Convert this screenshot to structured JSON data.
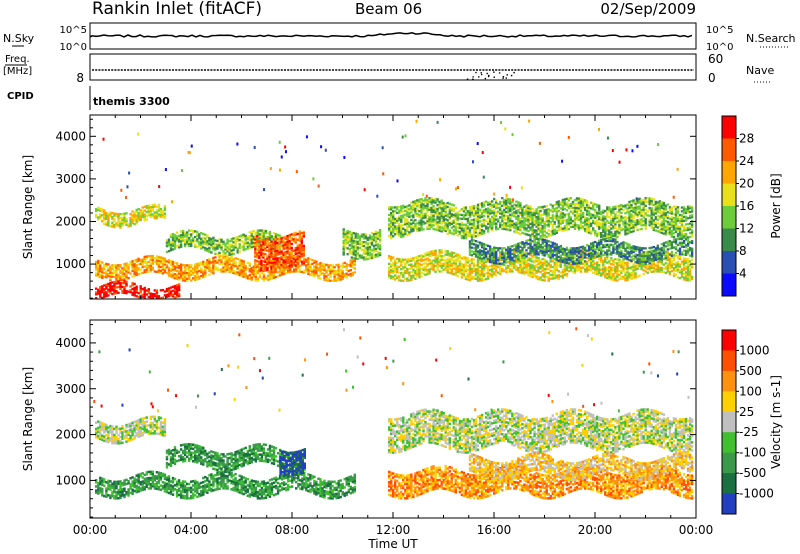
{
  "header": {
    "title": "Rankin Inlet (fitACF)",
    "beam": "Beam 06",
    "date": "02/Sep/2009"
  },
  "info_panels": {
    "nsky_label": "N.Sky",
    "nsky_ticks": [
      "10^5",
      "10^0"
    ],
    "nsearch_label": "N.Search",
    "nsearch_ticks": [
      "10^5",
      "10^0"
    ],
    "freq_label_1": "Freq.",
    "freq_label_2": "[MHz]",
    "freq_tick": "8",
    "nave_label": "Nave",
    "nave_ticks": [
      "60",
      "0"
    ],
    "cpid_label": "CPID",
    "cpid_value": "themis 3300"
  },
  "chart_data": [
    {
      "type": "heatmap",
      "name": "power",
      "xlabel": "",
      "ylabel": "Slant Range [km]",
      "xlim": [
        0,
        24
      ],
      "ylim": [
        180,
        4500
      ],
      "y_ticks": [
        1000,
        2000,
        3000,
        4000
      ],
      "colorbar_label": "Power [dB]",
      "colorbar_ticks": [
        "4",
        "8",
        "12",
        "16",
        "20",
        "24",
        "28"
      ],
      "colorbar_colors": [
        "#0a0aff",
        "#2a4fb4",
        "#3a8a4a",
        "#6ccc3a",
        "#e8e018",
        "#ffa500",
        "#ff5a00",
        "#ff0000"
      ],
      "echo_bands": [
        {
          "t": [
            0.2,
            3.0
          ],
          "r": [
            1950,
            2300
          ],
          "level": 4
        },
        {
          "t": [
            0.2,
            10.5
          ],
          "r": [
            700,
            1100
          ],
          "level": 5
        },
        {
          "t": [
            0.2,
            3.5
          ],
          "r": [
            200,
            500
          ],
          "level": 7
        },
        {
          "t": [
            3.0,
            7.5
          ],
          "r": [
            1300,
            1700
          ],
          "level": 3
        },
        {
          "t": [
            6.5,
            8.5
          ],
          "r": [
            900,
            1700
          ],
          "level": 6
        },
        {
          "t": [
            10.0,
            11.5
          ],
          "r": [
            1200,
            1800
          ],
          "level": 3
        },
        {
          "t": [
            11.8,
            23.8
          ],
          "r": [
            1700,
            2450
          ],
          "level": 3
        },
        {
          "t": [
            11.8,
            23.8
          ],
          "r": [
            700,
            1200
          ],
          "level": 4
        },
        {
          "t": [
            15.0,
            23.8
          ],
          "r": [
            1100,
            1500
          ],
          "level": 2
        }
      ]
    },
    {
      "type": "heatmap",
      "name": "velocity",
      "xlabel": "Time UT",
      "ylabel": "Slant Range [km]",
      "xlim": [
        0,
        24
      ],
      "ylim": [
        180,
        4500
      ],
      "y_ticks": [
        1000,
        2000,
        3000,
        4000
      ],
      "x_ticks": [
        "00:00",
        "04:00",
        "08:00",
        "12:00",
        "16:00",
        "20:00",
        "00:00"
      ],
      "colorbar_label": "Velocity [m s-1]",
      "colorbar_ticks": [
        "1000",
        "500",
        "100",
        "25",
        "-25",
        "-100",
        "-500",
        "-1000"
      ],
      "colorbar_colors": [
        "#2040c0",
        "#1a7040",
        "#3a9a4a",
        "#40c030",
        "#c0c0c0",
        "#ffd000",
        "#ff9010",
        "#ff5000",
        "#ff0000"
      ],
      "echo_bands": [
        {
          "t": [
            0.2,
            3.0
          ],
          "r": [
            1900,
            2300
          ],
          "level": 4
        },
        {
          "t": [
            0.2,
            10.5
          ],
          "r": [
            700,
            1100
          ],
          "level": 2
        },
        {
          "t": [
            3.0,
            8.5
          ],
          "r": [
            1300,
            1700
          ],
          "level": 2
        },
        {
          "t": [
            7.5,
            8.5
          ],
          "r": [
            1200,
            1700
          ],
          "level": 0
        },
        {
          "t": [
            11.8,
            23.8
          ],
          "r": [
            1700,
            2450
          ],
          "level": 4
        },
        {
          "t": [
            11.8,
            23.8
          ],
          "r": [
            700,
            1200
          ],
          "level": 6
        },
        {
          "t": [
            15.0,
            23.8
          ],
          "r": [
            1100,
            1500
          ],
          "level": 5
        }
      ]
    }
  ]
}
